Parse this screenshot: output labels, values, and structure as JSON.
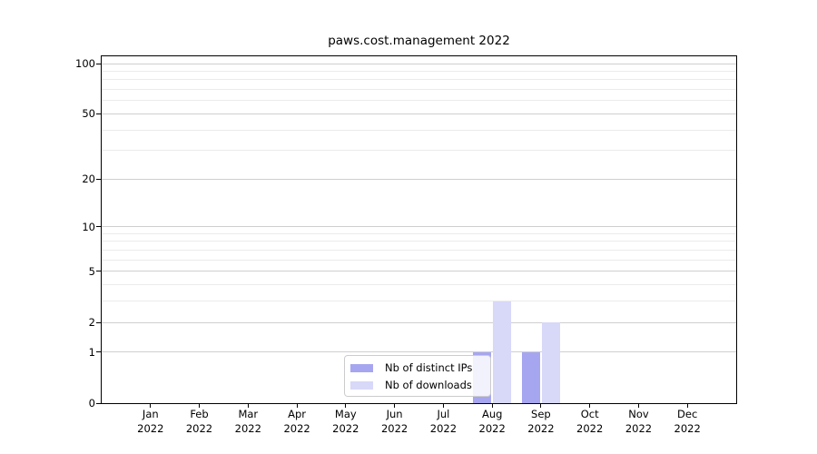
{
  "chart_data": {
    "type": "bar",
    "title": "paws.cost.management 2022",
    "year": "2022",
    "categories": [
      "Jan",
      "Feb",
      "Mar",
      "Apr",
      "May",
      "Jun",
      "Jul",
      "Aug",
      "Sep",
      "Oct",
      "Nov",
      "Dec"
    ],
    "series": [
      {
        "name": "Nb of distinct IPs",
        "color": "#a6a6f0",
        "values": [
          0,
          0,
          0,
          0,
          0,
          0,
          0,
          1,
          1,
          0,
          0,
          0
        ]
      },
      {
        "name": "Nb of downloads",
        "color": "#d8d8f9",
        "values": [
          0,
          0,
          0,
          0,
          0,
          0,
          0,
          3,
          2,
          0,
          0,
          0
        ]
      }
    ],
    "xlabel": "",
    "ylabel": "",
    "y_axis": {
      "scale": "log10(1+value)",
      "tick_values": [
        0,
        1,
        2,
        5,
        10,
        20,
        50,
        100
      ],
      "tick_labels": [
        "0",
        "1",
        "2",
        "5",
        "10",
        "20",
        "50",
        "100"
      ],
      "minor_gridline_values": [
        3,
        4,
        6,
        7,
        8,
        9,
        30,
        40,
        60,
        70,
        80,
        90
      ],
      "ylim": [
        0,
        110
      ]
    },
    "grid": "horizontal",
    "legend": {
      "position": "lower center",
      "entries": [
        "Nb of distinct IPs",
        "Nb of downloads"
      ]
    },
    "colors": {
      "spine": "#000000",
      "major_grid": "#cfcfcf",
      "minor_grid": "#ebebeb",
      "background": "#ffffff"
    }
  }
}
